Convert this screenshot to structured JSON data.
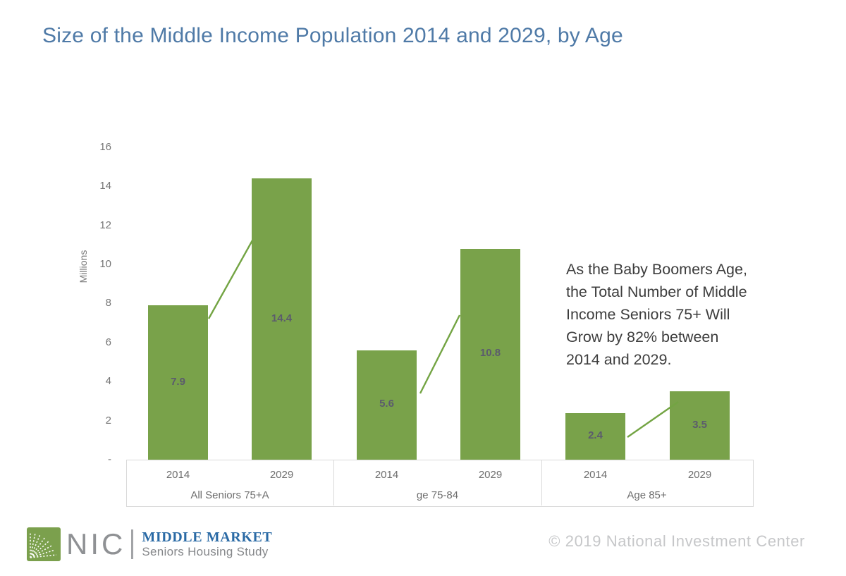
{
  "title": "Size of the Middle Income Population 2014 and 2029, by Age",
  "chart_data": {
    "type": "bar",
    "title": "Size of the Middle Income Population 2014 and 2029, by Age",
    "xlabel": "",
    "ylabel": "Millions",
    "ylim": [
      0,
      16
    ],
    "ytick_interval": 2,
    "ytick_labels": [
      "16",
      "14",
      "12",
      "10",
      "8",
      "6",
      "4",
      "2",
      "-"
    ],
    "grid": false,
    "legend_position": "none",
    "categories": [
      "All Seniors 75+A",
      "ge 75-84",
      "Age 85+"
    ],
    "series": [
      {
        "name": "2014",
        "values": [
          7.9,
          5.6,
          2.4
        ]
      },
      {
        "name": "2029",
        "values": [
          14.4,
          10.8,
          3.5
        ]
      }
    ],
    "data_labels": [
      [
        "7.9",
        "14.4"
      ],
      [
        "5.6",
        "10.8"
      ],
      [
        "2.4",
        "3.5"
      ]
    ],
    "colors": {
      "bar": "#79A24A",
      "connector_line": "#73A443",
      "data_label": "#5B5B6D",
      "axis_text": "#6E6E6E",
      "axis_line": "#D9D9D9"
    }
  },
  "annotation": {
    "text": "As the Baby Boomers Age, the Total Number of Middle Income Seniors 75+ Will Grow by 82% between 2014 and 2029."
  },
  "footer": {
    "logo": {
      "acronym": "NIC",
      "brand": "MIDDLE MARKET",
      "tagline": "Seniors Housing Study"
    },
    "copyright": "© 2019 National Investment Center"
  },
  "colors": {
    "title": "#4F7AA7",
    "brand_blue": "#2A6AA5"
  }
}
